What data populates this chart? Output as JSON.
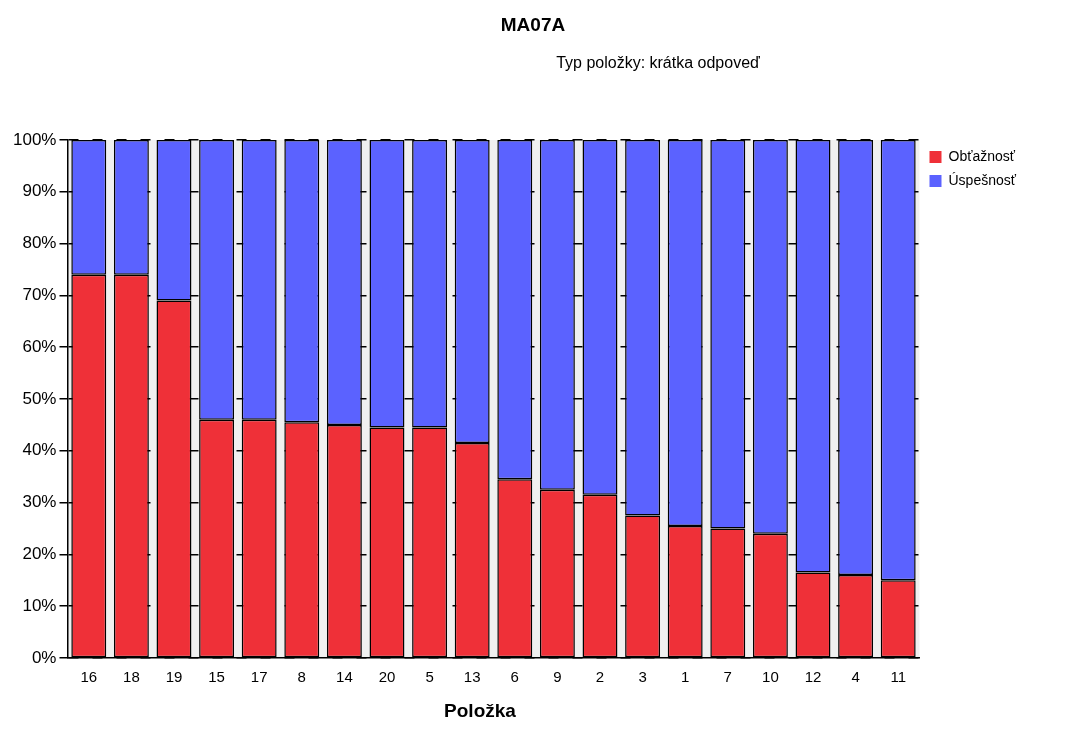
{
  "chart_data": {
    "type": "bar",
    "title": "MA07A",
    "subtitle": "Typ položky: krátka odpoveď",
    "xlabel": "Položka",
    "stacked": true,
    "categories": [
      "16",
      "18",
      "19",
      "15",
      "17",
      "8",
      "14",
      "20",
      "5",
      "13",
      "6",
      "9",
      "2",
      "3",
      "1",
      "7",
      "10",
      "12",
      "4",
      "11"
    ],
    "series": [
      {
        "name": "Obťažnosť",
        "color": "#ef3038",
        "values": [
          74,
          74,
          69,
          46,
          46,
          45.5,
          45,
          44.5,
          44.5,
          41.5,
          34.5,
          32.5,
          31.5,
          27.5,
          25.5,
          25,
          24,
          16.5,
          16,
          15
        ]
      },
      {
        "name": "Úspešnosť",
        "color": "#5b62ff",
        "values": [
          26,
          26,
          31,
          54,
          54,
          54.5,
          55,
          55.5,
          55.5,
          58.5,
          65.5,
          67.5,
          68.5,
          72.5,
          74.5,
          75,
          76,
          83.5,
          84,
          85
        ]
      }
    ],
    "ylim": [
      0,
      100
    ],
    "yticks": [
      {
        "value": 0,
        "label": "0%"
      },
      {
        "value": 10,
        "label": "10%"
      },
      {
        "value": 20,
        "label": "20%"
      },
      {
        "value": 30,
        "label": "30%"
      },
      {
        "value": 40,
        "label": "40%"
      },
      {
        "value": 50,
        "label": "50%"
      },
      {
        "value": 60,
        "label": "60%"
      },
      {
        "value": 70,
        "label": "70%"
      },
      {
        "value": 80,
        "label": "80%"
      },
      {
        "value": 90,
        "label": "90%"
      },
      {
        "value": 100,
        "label": "100%"
      }
    ],
    "grid": "y",
    "legend": "right"
  }
}
